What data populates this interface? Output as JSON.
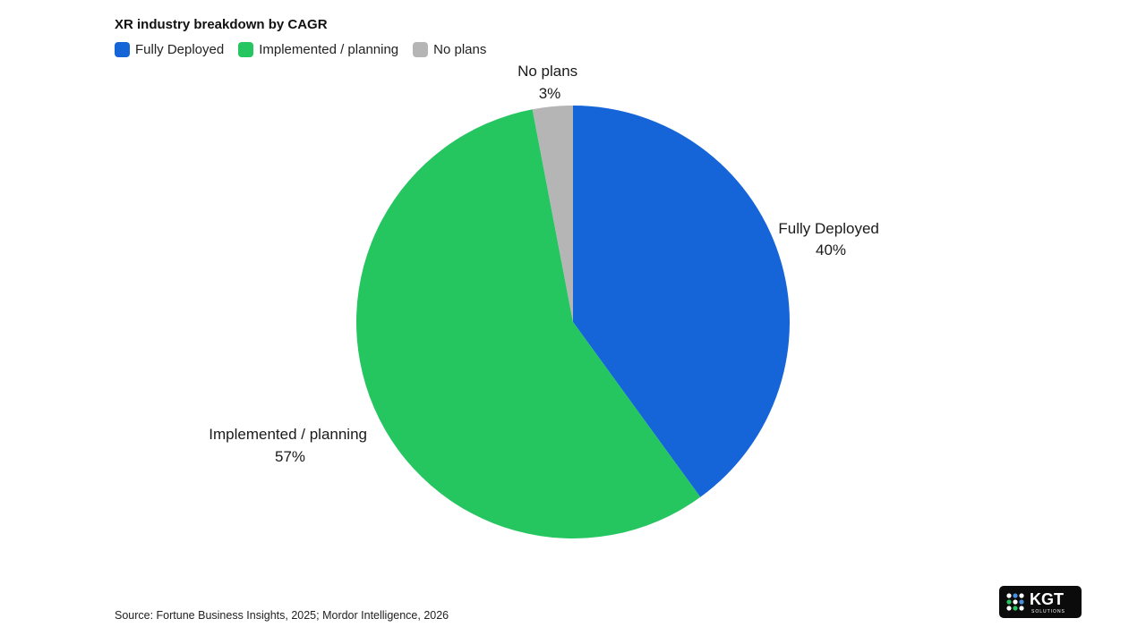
{
  "chart_data": {
    "type": "pie",
    "title": "XR industry breakdown by CAGR",
    "categories": [
      "Fully Deployed",
      "Implemented / planning",
      "No plans"
    ],
    "values": [
      40,
      57,
      3
    ],
    "unit": "%",
    "value_labels": [
      "40%",
      "57%",
      "3%"
    ],
    "colors": [
      "#1565D8",
      "#25C560",
      "#B5B5B5"
    ],
    "legend_position": "top-left",
    "start_angle": "12 o'clock",
    "direction": "clockwise"
  },
  "source": "Source: Fortune Business Insights, 2025; Mordor Intelligence, 2026",
  "logo": {
    "brand": "KGT",
    "tagline": "SOLUTIONS"
  }
}
